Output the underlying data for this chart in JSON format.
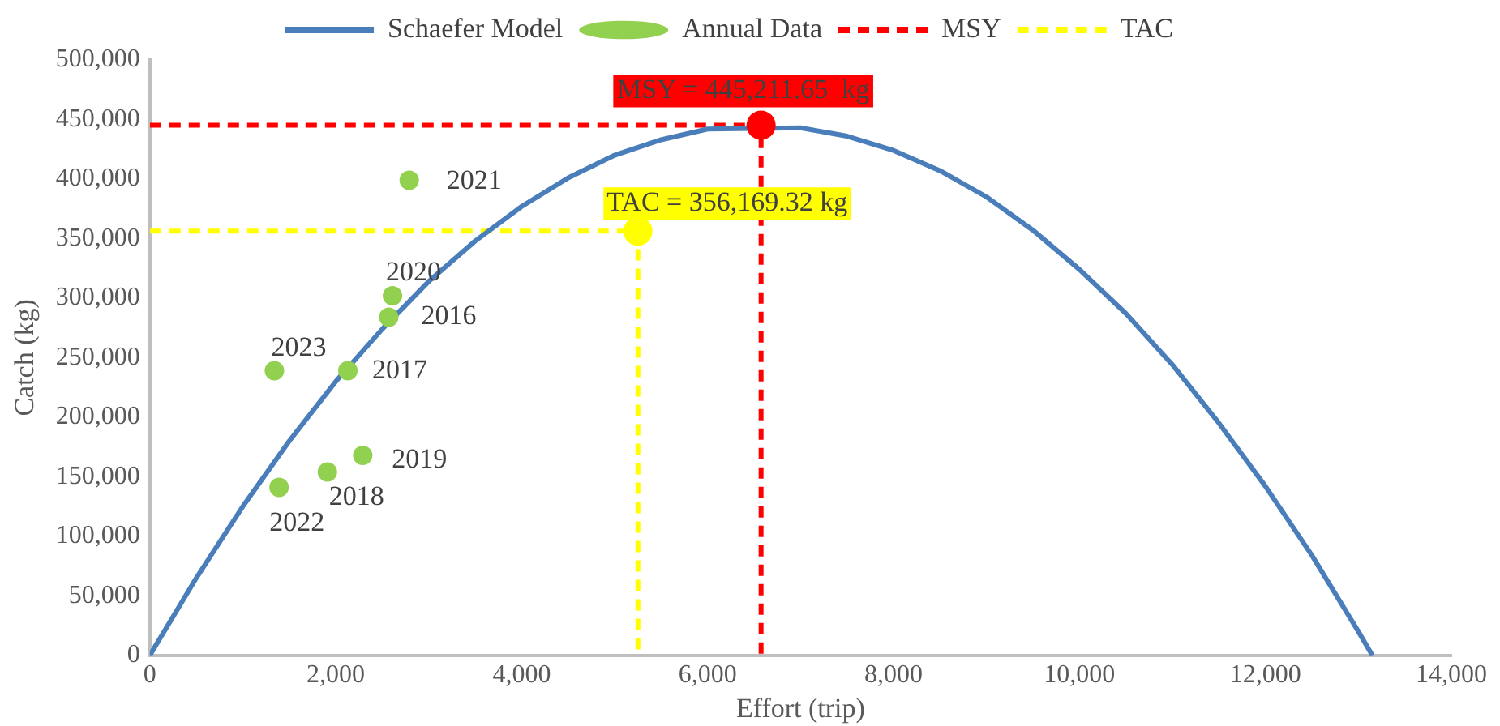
{
  "chart_data": {
    "type": "line",
    "xlabel": "Effort (trip)",
    "ylabel": "Catch (kg)",
    "xlim": [
      0,
      14000
    ],
    "xticks": [
      0,
      {
        "value": 2000,
        "label": "2,000"
      },
      {
        "value": 4000,
        "label": "4,000"
      },
      {
        "value": 6000,
        "label": "6,000"
      },
      {
        "value": 8000,
        "label": "8,000"
      },
      {
        "value": 10000,
        "label": "10,000"
      },
      {
        "value": 12000,
        "label": "12,000"
      },
      {
        "value": 14000,
        "label": "14,000"
      }
    ],
    "ylim": [
      0,
      500000
    ],
    "yticks": [
      0,
      {
        "value": 50000,
        "label": "50,000"
      },
      {
        "value": 100000,
        "label": "100,000"
      },
      {
        "value": 150000,
        "label": "150,000"
      },
      {
        "value": 200000,
        "label": "200,000"
      },
      {
        "value": 250000,
        "label": "250,000"
      },
      {
        "value": 300000,
        "label": "300,000"
      },
      {
        "value": 350000,
        "label": "350,000"
      },
      {
        "value": 400000,
        "label": "400,000"
      },
      {
        "value": 450000,
        "label": "450,000"
      },
      {
        "value": 500000,
        "label": "500,000"
      }
    ],
    "grid": false,
    "legend": "top",
    "series": [
      {
        "name": "Schaefer Model",
        "color": "#4a7ebb",
        "marker": "none",
        "line_style": "solid",
        "x": [
          0,
          500,
          1000,
          1500,
          2000,
          2500,
          3000,
          3500,
          4000,
          4500,
          5000,
          5500,
          6000,
          7000,
          7500,
          8000,
          8500,
          9000,
          9500,
          10000,
          10500,
          11000,
          11500,
          12000,
          12500,
          13000,
          13150
        ],
        "values": [
          0,
          65000,
          125000,
          180000,
          230000,
          274000,
          314000,
          348000,
          377000,
          401000,
          420000,
          433000,
          442000,
          443000,
          436000,
          424000,
          407000,
          385000,
          357000,
          324000,
          287000,
          244000,
          195000,
          142000,
          84000,
          20000,
          0
        ]
      },
      {
        "name": "Annual Data",
        "type": "scatter",
        "color": "#92d050",
        "marker": "circle",
        "x": [
          2570,
          2130,
          1910,
          2290,
          2610,
          2790,
          1390,
          1340
        ],
        "values": [
          284000,
          239000,
          154000,
          168000,
          302000,
          399000,
          141000,
          239000
        ]
      },
      {
        "name": "MSY",
        "type": "line",
        "color": "#ff0000",
        "marker": "none",
        "line_style": "dashed",
        "x": [
          0,
          6575,
          6575
        ],
        "values": [
          445211.65,
          445211.65,
          0
        ]
      },
      {
        "name": "TAC",
        "type": "line",
        "color": "#ffff00",
        "marker": "none",
        "line_style": "dashed",
        "x": [
          0,
          5250,
          5250
        ],
        "values": [
          356169.32,
          356169.32,
          0
        ]
      },
      {
        "type": "scatter",
        "color": "#ff0000",
        "marker": "circle",
        "x": [
          6575
        ],
        "values": [
          445211.65
        ]
      },
      {
        "type": "scatter",
        "color": "#ffff00",
        "marker": "circle",
        "x": [
          5250
        ],
        "values": [
          356169.32
        ]
      }
    ],
    "annotations": [
      {
        "text": "2016",
        "x": 2570,
        "y": 284000
      },
      {
        "text": "2017",
        "x": 2130,
        "y": 239000
      },
      {
        "text": "2018",
        "x": 1910,
        "y": 154000
      },
      {
        "text": "2019",
        "x": 2290,
        "y": 168000
      },
      {
        "text": "2020",
        "x": 2610,
        "y": 302000
      },
      {
        "text": "2021",
        "x": 2790,
        "y": 399000
      },
      {
        "text": "2022",
        "x": 1390,
        "y": 141000
      },
      {
        "text": "2023",
        "x": 1340,
        "y": 239000
      },
      {
        "text": "MSY = 445,211.65  kg",
        "x": 6575,
        "y": 445211.65
      },
      {
        "text": "TAC = 356,169.32 kg",
        "x": 5250,
        "y": 356169.32
      }
    ]
  }
}
